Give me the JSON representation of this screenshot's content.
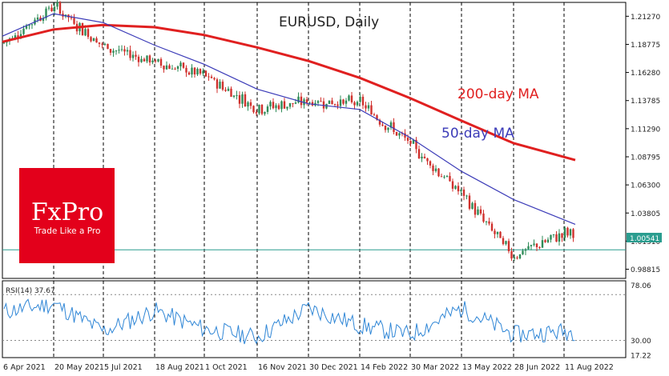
{
  "chart_data": [
    {
      "type": "candlestick",
      "title": "EURUSD, Daily",
      "y_ticks": [
        "1.21270",
        "1.18775",
        "1.16280",
        "1.13785",
        "1.11290",
        "1.08795",
        "1.06300",
        "1.03805",
        "1.01310",
        "0.98815"
      ],
      "ylim": [
        0.98,
        1.225
      ],
      "x_ticks": [
        "6 Apr 2021",
        "20 May 2021",
        "5 Jul 2021",
        "18 Aug 2021",
        "1 Oct 2021",
        "16 Nov 2021",
        "30 Dec 2021",
        "14 Feb 2022",
        "30 Mar 2022",
        "13 May 2022",
        "28 Jun 2022",
        "11 Aug 2022"
      ],
      "current_price": "1.00541",
      "current_price_value": 1.00541,
      "grid": "vertical dashed",
      "series": [
        {
          "name": "200-day MA",
          "color": "#e02020",
          "x": [
            "6 Apr 2021",
            "20 May 2021",
            "5 Jul 2021",
            "18 Aug 2021",
            "1 Oct 2021",
            "16 Nov 2021",
            "30 Dec 2021",
            "14 Feb 2022",
            "30 Mar 2022",
            "13 May 2022",
            "28 Jun 2022",
            "11 Aug 2022"
          ],
          "y": [
            1.19,
            1.201,
            1.205,
            1.203,
            1.196,
            1.185,
            1.173,
            1.158,
            1.14,
            1.12,
            1.1,
            1.085
          ]
        },
        {
          "name": "50-day MA",
          "color": "#3b3bb8",
          "x": [
            "6 Apr 2021",
            "20 May 2021",
            "5 Jul 2021",
            "18 Aug 2021",
            "1 Oct 2021",
            "16 Nov 2021",
            "30 Dec 2021",
            "14 Feb 2022",
            "30 Mar 2022",
            "13 May 2022",
            "28 Jun 2022",
            "11 Aug 2022"
          ],
          "y": [
            1.195,
            1.215,
            1.207,
            1.187,
            1.17,
            1.148,
            1.135,
            1.13,
            1.105,
            1.075,
            1.05,
            1.028
          ]
        }
      ],
      "price_x": [
        "6 Apr 2021",
        "20 May 2021",
        "5 Jul 2021",
        "18 Aug 2021",
        "1 Oct 2021",
        "16 Nov 2021",
        "30 Dec 2021",
        "14 Feb 2022",
        "30 Mar 2022",
        "13 May 2022",
        "28 Jun 2022",
        "11 Aug 2022"
      ],
      "price_y": [
        1.188,
        1.222,
        1.186,
        1.172,
        1.16,
        1.131,
        1.137,
        1.136,
        1.099,
        1.055,
        1.0,
        1.02
      ],
      "series_labels": [
        "200-day MA",
        "50-day MA"
      ]
    },
    {
      "type": "line",
      "title": "RSI(14) 37.67",
      "ylim": [
        15,
        82
      ],
      "y_ticks": [
        "78.06",
        "30.00",
        "17.22"
      ],
      "levels": [
        70,
        30
      ],
      "x": [
        "6 Apr 2021",
        "20 May 2021",
        "5 Jul 2021",
        "18 Aug 2021",
        "1 Oct 2021",
        "16 Nov 2021",
        "30 Dec 2021",
        "14 Feb 2022",
        "30 Mar 2022",
        "13 May 2022",
        "28 Jun 2022",
        "11 Aug 2022"
      ],
      "y": [
        55,
        62,
        38,
        56,
        40,
        33,
        58,
        43,
        35,
        58,
        35,
        37.67
      ]
    }
  ],
  "brand": {
    "name": "FxPro",
    "tagline": "Trade Like a Pro",
    "color": "#e3001b"
  }
}
